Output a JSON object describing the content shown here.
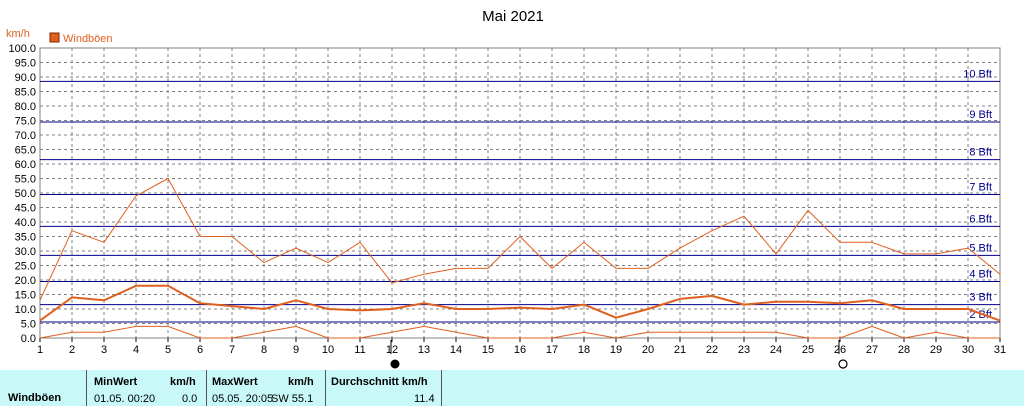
{
  "chart_data": {
    "type": "line",
    "title": "Mai 2021",
    "unit_label": "km/h",
    "ylim": [
      0,
      100
    ],
    "y_ticks": [
      "0.0",
      "5.0",
      "10.0",
      "15.0",
      "20.0",
      "25.0",
      "30.0",
      "35.0",
      "40.0",
      "45.0",
      "50.0",
      "55.0",
      "60.0",
      "65.0",
      "70.0",
      "75.0",
      "80.0",
      "85.0",
      "90.0",
      "95.0",
      "100.0"
    ],
    "x": [
      1,
      2,
      3,
      4,
      5,
      6,
      7,
      8,
      9,
      10,
      11,
      12,
      13,
      14,
      15,
      16,
      17,
      18,
      19,
      20,
      21,
      22,
      23,
      24,
      25,
      26,
      27,
      28,
      29,
      30,
      31
    ],
    "x_ticks": [
      "1",
      "2",
      "3",
      "4",
      "5",
      "6",
      "7",
      "8",
      "9",
      "10",
      "11",
      "12",
      "13",
      "14",
      "15",
      "16",
      "17",
      "18",
      "19",
      "20",
      "21",
      "22",
      "23",
      "24",
      "25",
      "26",
      "27",
      "28",
      "29",
      "30",
      "31"
    ],
    "legend": "Windböen",
    "beaufort": [
      {
        "label": "2 Bft",
        "value": 5.5
      },
      {
        "label": "3 Bft",
        "value": 11.5
      },
      {
        "label": "4 Bft",
        "value": 19.5
      },
      {
        "label": "5 Bft",
        "value": 28.5
      },
      {
        "label": "6 Bft",
        "value": 38.5
      },
      {
        "label": "7 Bft",
        "value": 49.5
      },
      {
        "label": "8 Bft",
        "value": 61.5
      },
      {
        "label": "9 Bft",
        "value": 74.5
      },
      {
        "label": "10 Bft",
        "value": 88.5
      }
    ],
    "series": [
      {
        "name": "Windböen",
        "role": "max",
        "values": [
          13,
          37,
          33,
          49,
          55,
          35,
          35,
          26,
          31,
          26,
          33,
          19,
          22,
          24,
          24,
          35,
          24,
          33,
          24,
          24,
          31,
          37,
          42,
          29,
          44,
          33,
          33,
          29,
          29,
          31,
          22
        ]
      },
      {
        "name": "Windböen",
        "role": "mean",
        "values": [
          6,
          14,
          13,
          18,
          18,
          12,
          11,
          10,
          13,
          10,
          9.5,
          10,
          12,
          10,
          10,
          10.5,
          10,
          11.5,
          7,
          10,
          13.5,
          14.5,
          11.5,
          12.5,
          12.5,
          12,
          13,
          10,
          10,
          10,
          6
        ]
      },
      {
        "name": "Windböen",
        "role": "min",
        "values": [
          0,
          2,
          2,
          4,
          4,
          0,
          0,
          2,
          4,
          0,
          0,
          2,
          4,
          2,
          0,
          0,
          0,
          2,
          0,
          2,
          2,
          2,
          2,
          2,
          0,
          0,
          4,
          0,
          2,
          0,
          0
        ]
      }
    ],
    "moon_phases": [
      {
        "day": 12,
        "phase": "new-moon"
      },
      {
        "day": 26,
        "phase": "full-moon"
      }
    ],
    "colors": {
      "series": "#e06020",
      "bft": "#00008b",
      "grid": "#808080",
      "stats_bg": "#c8f8f8"
    }
  },
  "stats": {
    "label": "Windböen",
    "min_title": "MinWert",
    "min_unit": "km/h",
    "min_time": "01.05.  00:20",
    "min_value": "0.0",
    "max_title": "MaxWert",
    "max_unit": "km/h",
    "max_time": "05.05.  20:05",
    "max_dir_value": "SW 55.1",
    "avg_title": "Durchschnitt km/h",
    "avg_value": "11.4"
  }
}
